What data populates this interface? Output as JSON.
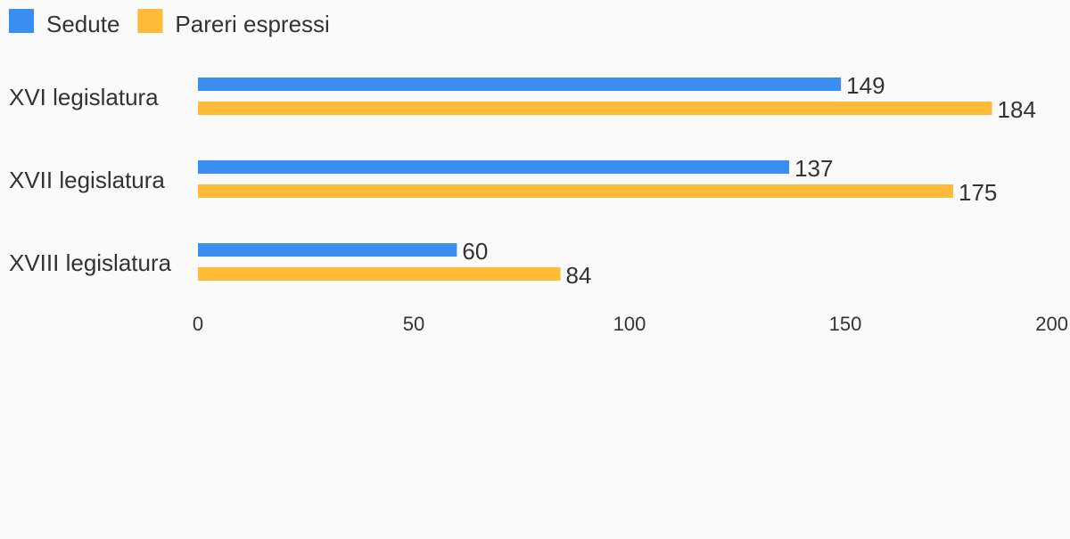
{
  "chart_data": {
    "type": "bar",
    "orientation": "horizontal",
    "categories": [
      "XVI legislatura",
      "XVII legislatura",
      "XVIII legislatura"
    ],
    "series": [
      {
        "name": "Sedute",
        "values": [
          149,
          137,
          60
        ],
        "color": "#3a8ef0"
      },
      {
        "name": "Pareri espressi",
        "values": [
          184,
          175,
          84
        ],
        "color": "#ffbb38"
      }
    ],
    "xlim": [
      0,
      200
    ],
    "xticks": [
      "0",
      "50",
      "100",
      "150",
      "200"
    ],
    "data_labels": true,
    "legend": "top-left",
    "grid": false
  }
}
